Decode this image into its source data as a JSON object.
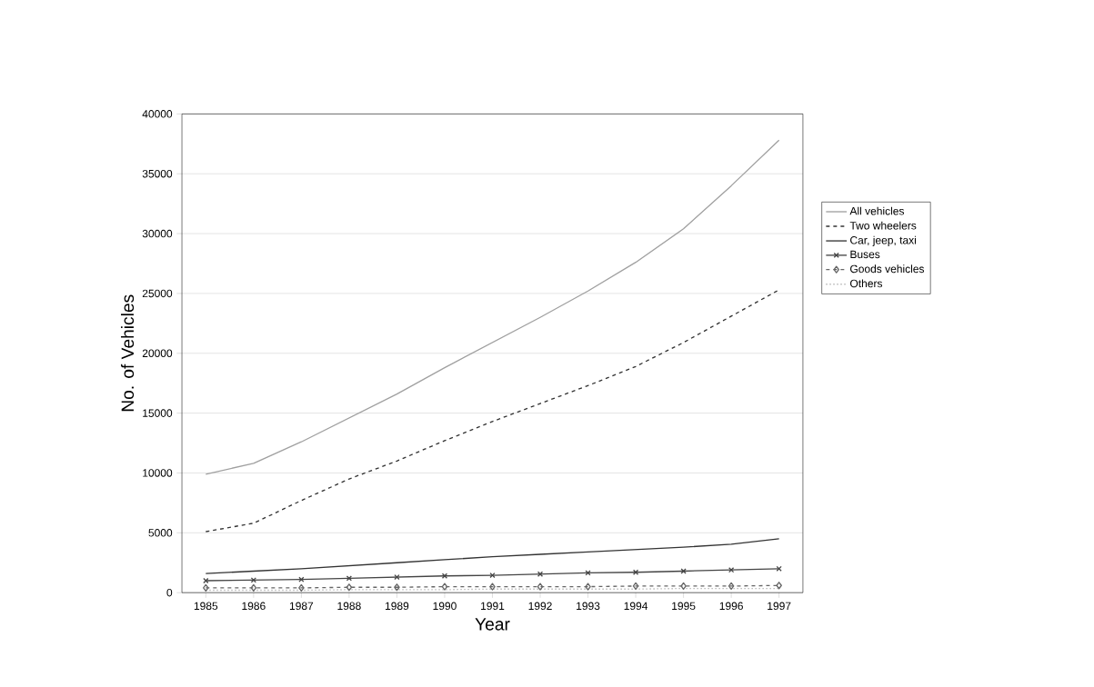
{
  "chart_data": {
    "type": "line",
    "xlabel": "Year",
    "ylabel": "No. of Vehicles",
    "categories": [
      "1985",
      "1986",
      "1987",
      "1988",
      "1989",
      "1990",
      "1991",
      "1992",
      "1993",
      "1994",
      "1995",
      "1996",
      "1997"
    ],
    "ylim": [
      0,
      40000
    ],
    "yticks": [
      0,
      5000,
      10000,
      15000,
      20000,
      25000,
      30000,
      35000,
      40000
    ],
    "grid": "y",
    "legend": "right",
    "series": [
      {
        "name": "All vehicles",
        "color": "#a0a0a0",
        "line_style": "solid",
        "marker": "none",
        "values": [
          9900,
          10800,
          12600,
          14600,
          16600,
          18800,
          20900,
          23000,
          25200,
          27600,
          30400,
          34000,
          37800
        ]
      },
      {
        "name": "Two wheelers",
        "color": "#333333",
        "line_style": "dashed",
        "marker": "none",
        "values": [
          5100,
          5800,
          7700,
          9500,
          11000,
          12700,
          14300,
          15800,
          17300,
          18900,
          20900,
          23100,
          25300
        ]
      },
      {
        "name": "Car, jeep, taxi",
        "color": "#333333",
        "line_style": "solid",
        "marker": "none",
        "values": [
          1600,
          1800,
          2000,
          2250,
          2500,
          2750,
          3000,
          3200,
          3400,
          3600,
          3800,
          4050,
          4500
        ]
      },
      {
        "name": "Buses",
        "color": "#444444",
        "line_style": "solid",
        "marker": "cross",
        "values": [
          1000,
          1050,
          1100,
          1200,
          1300,
          1400,
          1450,
          1550,
          1650,
          1700,
          1800,
          1900,
          2000
        ]
      },
      {
        "name": "Goods vehicles",
        "color": "#666666",
        "line_style": "dashed",
        "marker": "diamond",
        "values": [
          400,
          400,
          400,
          450,
          450,
          500,
          500,
          500,
          500,
          550,
          550,
          550,
          600
        ]
      },
      {
        "name": "Others",
        "color": "#b0b0b0",
        "line_style": "dotted",
        "marker": "none",
        "values": [
          200,
          200,
          200,
          250,
          250,
          250,
          300,
          300,
          300,
          300,
          350,
          350,
          350
        ]
      }
    ]
  }
}
